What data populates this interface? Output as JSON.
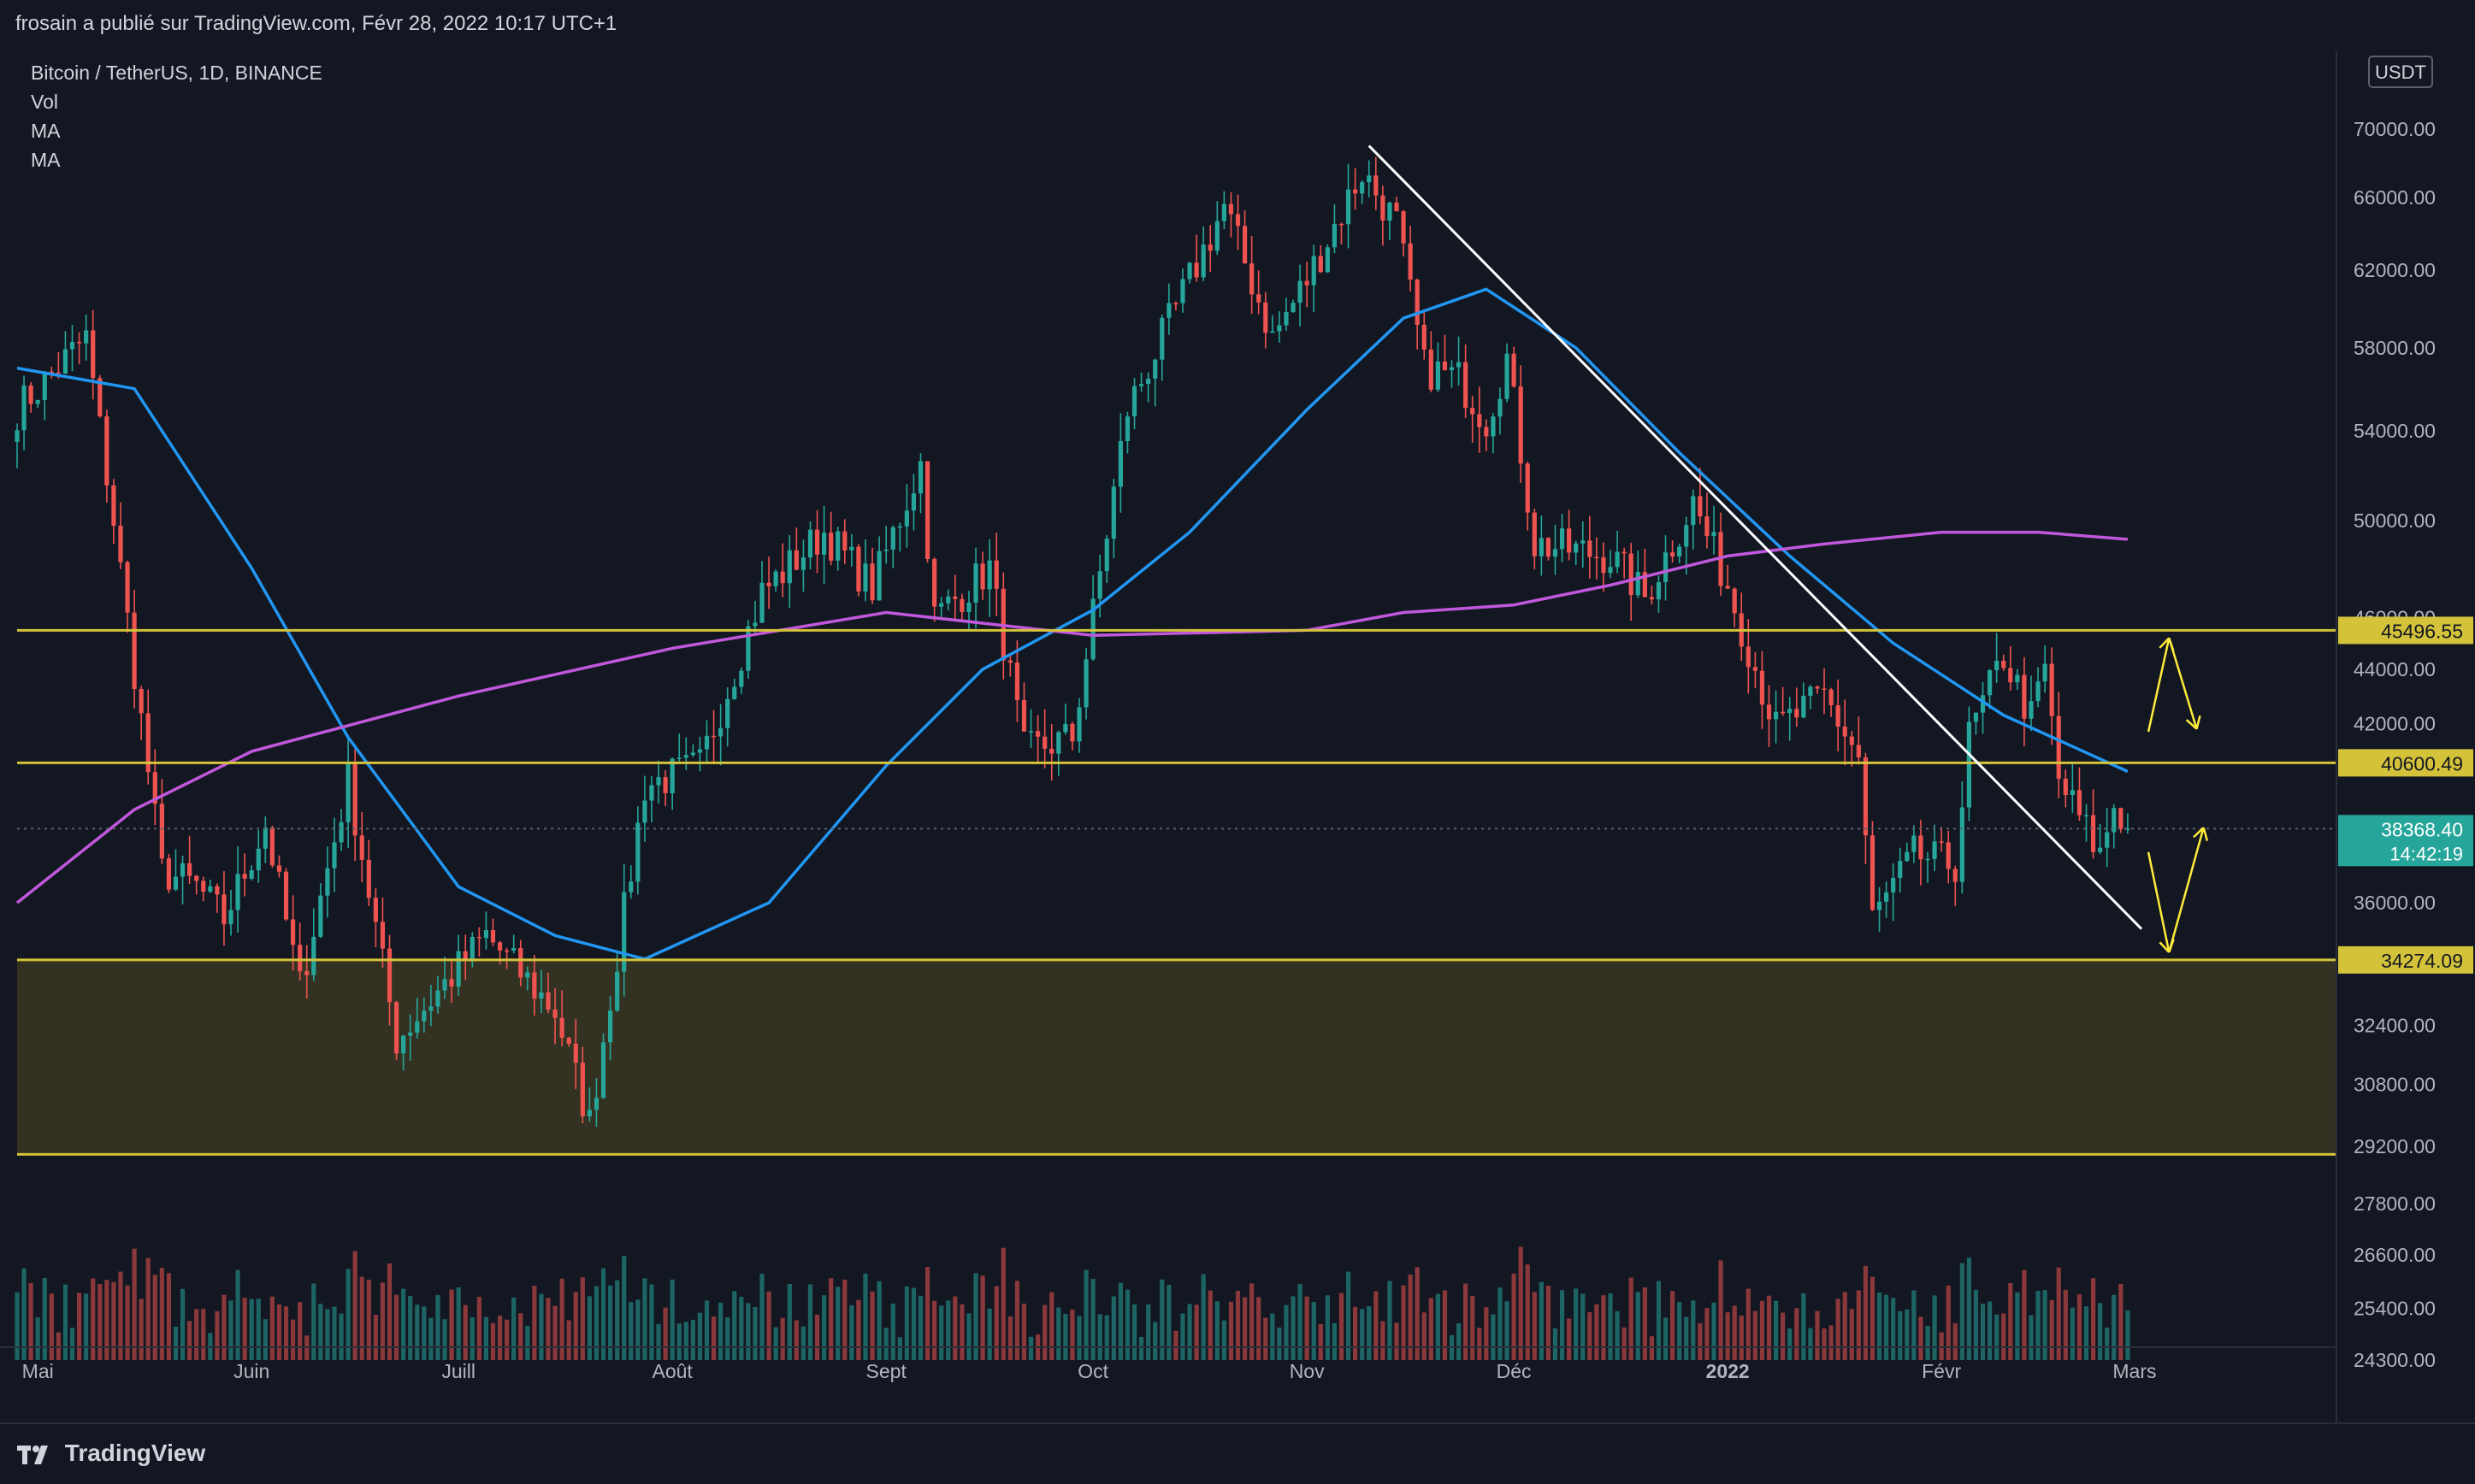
{
  "header": {
    "publisher_line": "frosain a publié sur TradingView.com, Févr 28, 2022 10:17 UTC+1"
  },
  "legend": {
    "symbol": "Bitcoin / TetherUS, 1D, BINANCE",
    "indicators": [
      "Vol",
      "MA",
      "MA"
    ]
  },
  "footer": {
    "brand": "TradingView"
  },
  "colors": {
    "background": "#131722",
    "up": "#26a69a",
    "down": "#ef5350",
    "ma_fast": "#2196f3",
    "ma_slow": "#c158dc",
    "level": "#d4c33a",
    "zone_fill": "#3a3722",
    "trendline": "#ffffff",
    "arrows": "#ffeb3b"
  },
  "chart_data": {
    "type": "candlestick",
    "title": "Bitcoin / TetherUS, 1D, BINANCE",
    "currency_label": "USDT",
    "y_scale": "log",
    "x_labels": [
      "Mai",
      "Juin",
      "Juill",
      "Août",
      "Sept",
      "Oct",
      "Nov",
      "Déc",
      "2022",
      "Févr",
      "Mars"
    ],
    "x_label_dates": [
      "2021-05-01",
      "2021-06-01",
      "2021-07-01",
      "2021-08-01",
      "2021-09-01",
      "2021-10-01",
      "2021-11-01",
      "2021-12-01",
      "2022-01-01",
      "2022-02-01",
      "2022-03-01"
    ],
    "y_ticks": [
      70000,
      66000,
      62000,
      58000,
      54000,
      50000,
      46000,
      44000,
      42000,
      36000,
      32400,
      30800,
      29200,
      27800,
      26600,
      25400,
      24300
    ],
    "y_tick_labels": [
      "70000.00",
      "66000.00",
      "62000.00",
      "58000.00",
      "54000.00",
      "50000.00",
      "46000.00",
      "44000.00",
      "42000.00",
      "36000.00",
      "32400.00",
      "30800.00",
      "29200.00",
      "27800.00",
      "26600.00",
      "25400.00",
      "24300.00"
    ],
    "price_tags": [
      {
        "label": "45496.55",
        "value": 45496.55,
        "kind": "level"
      },
      {
        "label": "40600.49",
        "value": 40600.49,
        "kind": "level"
      },
      {
        "label": "38368.40",
        "value": 38368.4,
        "kind": "last",
        "countdown": "14:42:19"
      },
      {
        "label": "34274.09",
        "value": 34274.09,
        "kind": "level"
      }
    ],
    "horizontal_levels": [
      45496.55,
      40600.49,
      34274.09,
      29000
    ],
    "support_zone": {
      "from": 29000,
      "to": 34274.09
    },
    "price_waypoints": [
      {
        "date": "2021-04-28",
        "price": 55000
      },
      {
        "date": "2021-05-08",
        "price": 58500
      },
      {
        "date": "2021-05-12",
        "price": 50000
      },
      {
        "date": "2021-05-19",
        "price": 37000
      },
      {
        "date": "2021-05-24",
        "price": 36500
      },
      {
        "date": "2021-05-28",
        "price": 35500
      },
      {
        "date": "2021-06-03",
        "price": 38500
      },
      {
        "date": "2021-06-08",
        "price": 33500
      },
      {
        "date": "2021-06-15",
        "price": 40000
      },
      {
        "date": "2021-06-22",
        "price": 32000
      },
      {
        "date": "2021-07-05",
        "price": 35000
      },
      {
        "date": "2021-07-15",
        "price": 32800
      },
      {
        "date": "2021-07-20",
        "price": 29800
      },
      {
        "date": "2021-07-28",
        "price": 39800
      },
      {
        "date": "2021-08-05",
        "price": 40500
      },
      {
        "date": "2021-08-14",
        "price": 47000
      },
      {
        "date": "2021-08-23",
        "price": 49500
      },
      {
        "date": "2021-08-30",
        "price": 47200
      },
      {
        "date": "2021-09-06",
        "price": 52500
      },
      {
        "date": "2021-09-08",
        "price": 46000
      },
      {
        "date": "2021-09-16",
        "price": 48000
      },
      {
        "date": "2021-09-21",
        "price": 41000
      },
      {
        "date": "2021-09-28",
        "price": 41500
      },
      {
        "date": "2021-10-06",
        "price": 55000
      },
      {
        "date": "2021-10-15",
        "price": 61500
      },
      {
        "date": "2021-10-20",
        "price": 65500
      },
      {
        "date": "2021-10-27",
        "price": 58500
      },
      {
        "date": "2021-11-01",
        "price": 61500
      },
      {
        "date": "2021-11-09",
        "price": 67500
      },
      {
        "date": "2021-11-14",
        "price": 64500
      },
      {
        "date": "2021-11-18",
        "price": 57000
      },
      {
        "date": "2021-11-23",
        "price": 56500
      },
      {
        "date": "2021-11-27",
        "price": 54500
      },
      {
        "date": "2021-11-30",
        "price": 57500
      },
      {
        "date": "2021-12-04",
        "price": 49000
      },
      {
        "date": "2021-12-15",
        "price": 48500
      },
      {
        "date": "2021-12-20",
        "price": 46800
      },
      {
        "date": "2021-12-27",
        "price": 50800
      },
      {
        "date": "2022-01-01",
        "price": 47300
      },
      {
        "date": "2022-01-08",
        "price": 41800
      },
      {
        "date": "2022-01-15",
        "price": 43000
      },
      {
        "date": "2022-01-20",
        "price": 40800
      },
      {
        "date": "2022-01-22",
        "price": 35500
      },
      {
        "date": "2022-01-28",
        "price": 37500
      },
      {
        "date": "2022-02-03",
        "price": 37200
      },
      {
        "date": "2022-02-05",
        "price": 41500
      },
      {
        "date": "2022-02-10",
        "price": 44500
      },
      {
        "date": "2022-02-14",
        "price": 42200
      },
      {
        "date": "2022-02-16",
        "price": 44000
      },
      {
        "date": "2022-02-18",
        "price": 40000
      },
      {
        "date": "2022-02-24",
        "price": 37500
      },
      {
        "date": "2022-02-26",
        "price": 39200
      },
      {
        "date": "2022-02-28",
        "price": 38368.4
      }
    ],
    "ma_fast": {
      "color": "#2196f3",
      "points": [
        {
          "date": "2021-04-28",
          "price": 57000
        },
        {
          "date": "2021-05-15",
          "price": 56000
        },
        {
          "date": "2021-06-01",
          "price": 48000
        },
        {
          "date": "2021-06-15",
          "price": 41500
        },
        {
          "date": "2021-07-01",
          "price": 36500
        },
        {
          "date": "2021-07-15",
          "price": 35000
        },
        {
          "date": "2021-07-28",
          "price": 34300
        },
        {
          "date": "2021-08-15",
          "price": 36000
        },
        {
          "date": "2021-09-01",
          "price": 40500
        },
        {
          "date": "2021-09-15",
          "price": 44000
        },
        {
          "date": "2021-10-01",
          "price": 46300
        },
        {
          "date": "2021-10-15",
          "price": 49500
        },
        {
          "date": "2021-11-01",
          "price": 55000
        },
        {
          "date": "2021-11-15",
          "price": 59500
        },
        {
          "date": "2021-11-27",
          "price": 61000
        },
        {
          "date": "2021-12-10",
          "price": 58000
        },
        {
          "date": "2021-12-25",
          "price": 53000
        },
        {
          "date": "2022-01-10",
          "price": 48500
        },
        {
          "date": "2022-01-25",
          "price": 45000
        },
        {
          "date": "2022-02-10",
          "price": 42300
        },
        {
          "date": "2022-02-28",
          "price": 40300
        }
      ]
    },
    "ma_slow": {
      "color": "#c158dc",
      "points": [
        {
          "date": "2021-04-28",
          "price": 36000
        },
        {
          "date": "2021-05-15",
          "price": 39000
        },
        {
          "date": "2021-06-01",
          "price": 41000
        },
        {
          "date": "2021-07-01",
          "price": 43000
        },
        {
          "date": "2021-08-01",
          "price": 44800
        },
        {
          "date": "2021-09-01",
          "price": 46200
        },
        {
          "date": "2021-10-01",
          "price": 45300
        },
        {
          "date": "2021-11-01",
          "price": 45500
        },
        {
          "date": "2021-11-15",
          "price": 46200
        },
        {
          "date": "2021-12-01",
          "price": 46500
        },
        {
          "date": "2021-12-15",
          "price": 47300
        },
        {
          "date": "2022-01-01",
          "price": 48500
        },
        {
          "date": "2022-01-15",
          "price": 49000
        },
        {
          "date": "2022-02-01",
          "price": 49500
        },
        {
          "date": "2022-02-15",
          "price": 49500
        },
        {
          "date": "2022-02-28",
          "price": 49200
        }
      ]
    },
    "trendline": {
      "from": {
        "date": "2021-11-10",
        "price": 69000
      },
      "to": {
        "date": "2022-03-02",
        "price": 35200
      }
    },
    "annotations": {
      "arrows_up_scenario": [
        {
          "from": {
            "date": "2022-03-03",
            "price": 41700
          },
          "to": {
            "date": "2022-03-06",
            "price": 45200
          }
        },
        {
          "from": {
            "date": "2022-03-06",
            "price": 45200
          },
          "to": {
            "date": "2022-03-10",
            "price": 41800
          }
        }
      ],
      "arrows_down_scenario": [
        {
          "from": {
            "date": "2022-03-03",
            "price": 37600
          },
          "to": {
            "date": "2022-03-06",
            "price": 34500
          }
        },
        {
          "from": {
            "date": "2022-03-06",
            "price": 34500
          },
          "to": {
            "date": "2022-03-11",
            "price": 38400
          }
        }
      ]
    }
  }
}
